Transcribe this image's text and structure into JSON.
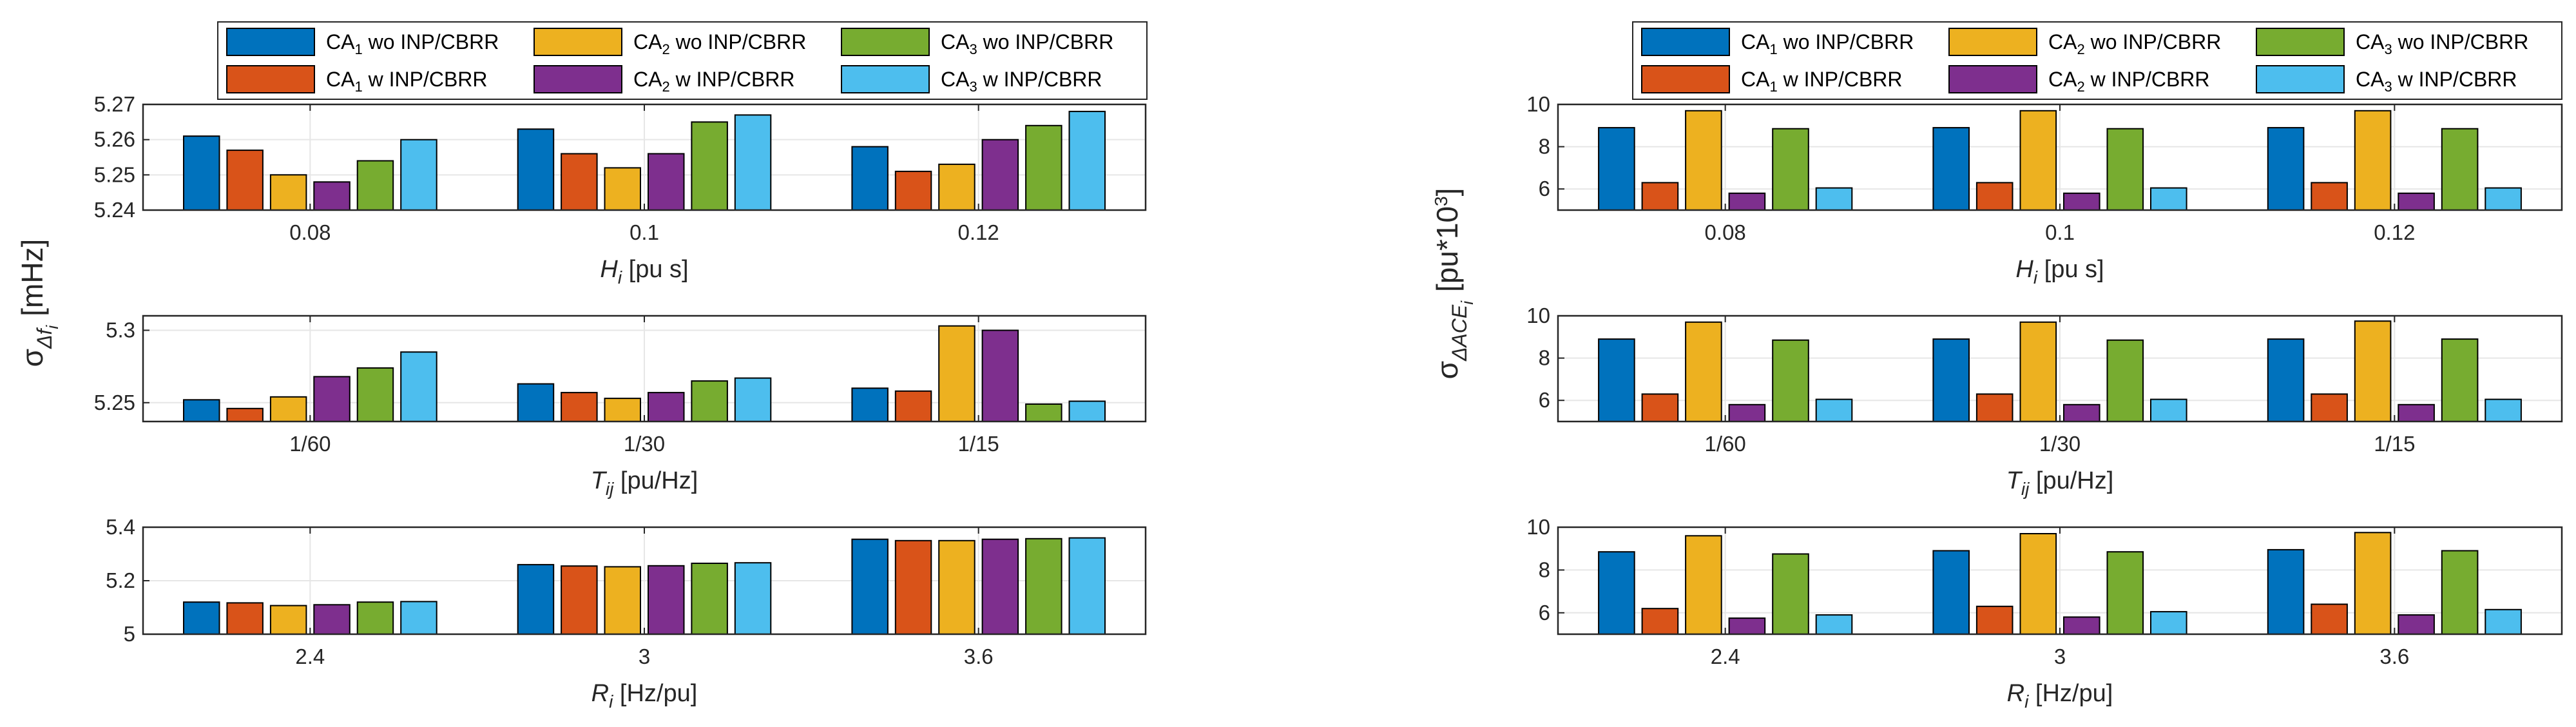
{
  "figure": {
    "colors": {
      "ca1_wo": "#0072BD",
      "ca1_w": "#D95319",
      "ca2_wo": "#EDB120",
      "ca2_w": "#7E2F8E",
      "ca3_wo": "#77AC30",
      "ca3_w": "#4DBEEE",
      "grid": "#e6e6e6",
      "axis": "#262626"
    },
    "legend": [
      {
        "base": "CA",
        "sub": "1",
        "rest": " wo INP/CBRR",
        "series": "ca1_wo"
      },
      {
        "base": "CA",
        "sub": "2",
        "rest": " wo INP/CBRR",
        "series": "ca2_wo"
      },
      {
        "base": "CA",
        "sub": "3",
        "rest": " wo INP/CBRR",
        "series": "ca3_wo"
      },
      {
        "base": "CA",
        "sub": "1",
        "rest": " w INP/CBRR",
        "series": "ca1_w"
      },
      {
        "base": "CA",
        "sub": "2",
        "rest": " w INP/CBRR",
        "series": "ca2_w"
      },
      {
        "base": "CA",
        "sub": "3",
        "rest": " w INP/CBRR",
        "series": "ca3_w"
      }
    ],
    "left_ylabel": {
      "sigma": "σ",
      "sub1": "Δf",
      "sub2": "i",
      "unit": "[mHz]"
    },
    "right_ylabel": {
      "sigma": "σ",
      "sub1": "ΔACE",
      "sub2": "i",
      "unit": "[pu*10",
      "sup": "3",
      "close": "]"
    }
  },
  "chart_data": [
    {
      "type": "bar",
      "column": "left",
      "row": 0,
      "categories": [
        "0.08",
        "0.1",
        "0.12"
      ],
      "xlabel": {
        "sym": "H",
        "sub": "i",
        "unit": " [pu s]"
      },
      "ylim": [
        5.24,
        5.27
      ],
      "yticks": [
        "5.24",
        "5.25",
        "5.26",
        "5.27"
      ],
      "ytick_values": [
        5.24,
        5.25,
        5.26,
        5.27
      ],
      "series": [
        {
          "name": "CA1 wo INP/CBRR",
          "key": "ca1_wo",
          "values": [
            5.261,
            5.263,
            5.258
          ]
        },
        {
          "name": "CA1 w INP/CBRR",
          "key": "ca1_w",
          "values": [
            5.257,
            5.256,
            5.251
          ]
        },
        {
          "name": "CA2 wo INP/CBRR",
          "key": "ca2_wo",
          "values": [
            5.25,
            5.252,
            5.253
          ]
        },
        {
          "name": "CA2 w INP/CBRR",
          "key": "ca2_w",
          "values": [
            5.248,
            5.256,
            5.26
          ]
        },
        {
          "name": "CA3 wo INP/CBRR",
          "key": "ca3_wo",
          "values": [
            5.254,
            5.265,
            5.264
          ]
        },
        {
          "name": "CA3 w INP/CBRR",
          "key": "ca3_w",
          "values": [
            5.26,
            5.267,
            5.268
          ]
        }
      ]
    },
    {
      "type": "bar",
      "column": "left",
      "row": 1,
      "categories": [
        "1/60",
        "1/30",
        "1/15"
      ],
      "xlabel": {
        "sym": "T",
        "sub": "ij",
        "unit": " [pu/Hz]"
      },
      "ylim": [
        5.237,
        5.31
      ],
      "yticks": [
        "5.25",
        "5.3"
      ],
      "ytick_values": [
        5.25,
        5.3
      ],
      "series": [
        {
          "name": "CA1 wo INP/CBRR",
          "key": "ca1_wo",
          "values": [
            5.252,
            5.263,
            5.26
          ]
        },
        {
          "name": "CA1 w INP/CBRR",
          "key": "ca1_w",
          "values": [
            5.246,
            5.257,
            5.258
          ]
        },
        {
          "name": "CA2 wo INP/CBRR",
          "key": "ca2_wo",
          "values": [
            5.254,
            5.253,
            5.303
          ]
        },
        {
          "name": "CA2 w INP/CBRR",
          "key": "ca2_w",
          "values": [
            5.268,
            5.257,
            5.3
          ]
        },
        {
          "name": "CA3 wo INP/CBRR",
          "key": "ca3_wo",
          "values": [
            5.274,
            5.265,
            5.249
          ]
        },
        {
          "name": "CA3 w INP/CBRR",
          "key": "ca3_w",
          "values": [
            5.285,
            5.267,
            5.251
          ]
        }
      ]
    },
    {
      "type": "bar",
      "column": "left",
      "row": 2,
      "categories": [
        "2.4",
        "3",
        "3.6"
      ],
      "xlabel": {
        "sym": "R",
        "sub": "i",
        "unit": " [Hz/pu]"
      },
      "ylim": [
        5.0,
        5.4
      ],
      "yticks": [
        "5",
        "5.2",
        "5.4"
      ],
      "ytick_values": [
        5.0,
        5.2,
        5.4
      ],
      "series": [
        {
          "name": "CA1 wo INP/CBRR",
          "key": "ca1_wo",
          "values": [
            5.12,
            5.26,
            5.355
          ]
        },
        {
          "name": "CA1 w INP/CBRR",
          "key": "ca1_w",
          "values": [
            5.117,
            5.255,
            5.35
          ]
        },
        {
          "name": "CA2 wo INP/CBRR",
          "key": "ca2_wo",
          "values": [
            5.107,
            5.252,
            5.35
          ]
        },
        {
          "name": "CA2 w INP/CBRR",
          "key": "ca2_w",
          "values": [
            5.11,
            5.256,
            5.355
          ]
        },
        {
          "name": "CA3 wo INP/CBRR",
          "key": "ca3_wo",
          "values": [
            5.12,
            5.265,
            5.357
          ]
        },
        {
          "name": "CA3 w INP/CBRR",
          "key": "ca3_w",
          "values": [
            5.122,
            5.267,
            5.36
          ]
        }
      ]
    },
    {
      "type": "bar",
      "column": "right",
      "row": 0,
      "categories": [
        "0.08",
        "0.1",
        "0.12"
      ],
      "xlabel": {
        "sym": "H",
        "sub": "i",
        "unit": " [pu s]"
      },
      "ylim": [
        5,
        10
      ],
      "yticks": [
        "6",
        "8",
        "10"
      ],
      "ytick_values": [
        6,
        8,
        10
      ],
      "series": [
        {
          "name": "CA1 wo INP/CBRR",
          "key": "ca1_wo",
          "values": [
            8.9,
            8.9,
            8.9
          ]
        },
        {
          "name": "CA1 w INP/CBRR",
          "key": "ca1_w",
          "values": [
            6.3,
            6.3,
            6.3
          ]
        },
        {
          "name": "CA2 wo INP/CBRR",
          "key": "ca2_wo",
          "values": [
            9.7,
            9.7,
            9.7
          ]
        },
        {
          "name": "CA2 w INP/CBRR",
          "key": "ca2_w",
          "values": [
            5.8,
            5.8,
            5.8
          ]
        },
        {
          "name": "CA3 wo INP/CBRR",
          "key": "ca3_wo",
          "values": [
            8.85,
            8.85,
            8.85
          ]
        },
        {
          "name": "CA3 w INP/CBRR",
          "key": "ca3_w",
          "values": [
            6.05,
            6.05,
            6.05
          ]
        }
      ]
    },
    {
      "type": "bar",
      "column": "right",
      "row": 1,
      "categories": [
        "1/60",
        "1/30",
        "1/15"
      ],
      "xlabel": {
        "sym": "T",
        "sub": "ij",
        "unit": " [pu/Hz]"
      },
      "ylim": [
        5,
        10
      ],
      "yticks": [
        "6",
        "8",
        "10"
      ],
      "ytick_values": [
        6,
        8,
        10
      ],
      "series": [
        {
          "name": "CA1 wo INP/CBRR",
          "key": "ca1_wo",
          "values": [
            8.9,
            8.9,
            8.9
          ]
        },
        {
          "name": "CA1 w INP/CBRR",
          "key": "ca1_w",
          "values": [
            6.3,
            6.3,
            6.3
          ]
        },
        {
          "name": "CA2 wo INP/CBRR",
          "key": "ca2_wo",
          "values": [
            9.7,
            9.7,
            9.75
          ]
        },
        {
          "name": "CA2 w INP/CBRR",
          "key": "ca2_w",
          "values": [
            5.8,
            5.8,
            5.8
          ]
        },
        {
          "name": "CA3 wo INP/CBRR",
          "key": "ca3_wo",
          "values": [
            8.85,
            8.85,
            8.9
          ]
        },
        {
          "name": "CA3 w INP/CBRR",
          "key": "ca3_w",
          "values": [
            6.05,
            6.05,
            6.05
          ]
        }
      ]
    },
    {
      "type": "bar",
      "column": "right",
      "row": 2,
      "categories": [
        "2.4",
        "3",
        "3.6"
      ],
      "xlabel": {
        "sym": "R",
        "sub": "i",
        "unit": " [Hz/pu]"
      },
      "ylim": [
        5,
        10
      ],
      "yticks": [
        "6",
        "8",
        "10"
      ],
      "ytick_values": [
        6,
        8,
        10
      ],
      "series": [
        {
          "name": "CA1 wo INP/CBRR",
          "key": "ca1_wo",
          "values": [
            8.85,
            8.9,
            8.95
          ]
        },
        {
          "name": "CA1 w INP/CBRR",
          "key": "ca1_w",
          "values": [
            6.2,
            6.3,
            6.4
          ]
        },
        {
          "name": "CA2 wo INP/CBRR",
          "key": "ca2_wo",
          "values": [
            9.6,
            9.7,
            9.75
          ]
        },
        {
          "name": "CA2 w INP/CBRR",
          "key": "ca2_w",
          "values": [
            5.75,
            5.8,
            5.9
          ]
        },
        {
          "name": "CA3 wo INP/CBRR",
          "key": "ca3_wo",
          "values": [
            8.75,
            8.85,
            8.9
          ]
        },
        {
          "name": "CA3 w INP/CBRR",
          "key": "ca3_w",
          "values": [
            5.9,
            6.05,
            6.15
          ]
        }
      ]
    }
  ]
}
